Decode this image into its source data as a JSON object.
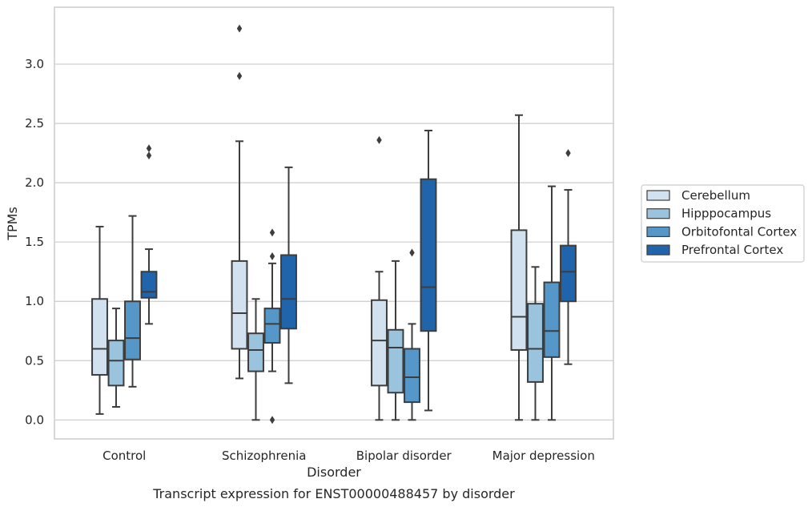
{
  "caption": "Transcript expression for ENST00000488457 by disorder",
  "chart_data": {
    "type": "box",
    "xlabel": "Disorder",
    "ylabel": "TPMs",
    "ylim": [
      -0.16,
      3.48
    ],
    "yticks": [
      "0.0",
      "0.5",
      "1.0",
      "1.5",
      "2.0",
      "2.5",
      "3.0"
    ],
    "ytick_values": [
      0.0,
      0.5,
      1.0,
      1.5,
      2.0,
      2.5,
      3.0
    ],
    "grid": "horizontal",
    "legend_position": "right",
    "categories": [
      "Control",
      "Schizophrenia",
      "Bipolar disorder",
      "Major depression"
    ],
    "series": [
      {
        "name": "Cerebellum",
        "color": "#d1e1f0",
        "boxes": [
          {
            "whisker_low": 0.05,
            "q1": 0.38,
            "median": 0.6,
            "q3": 1.02,
            "whisker_high": 1.63,
            "outliers": []
          },
          {
            "whisker_low": 0.35,
            "q1": 0.6,
            "median": 0.9,
            "q3": 1.34,
            "whisker_high": 2.35,
            "outliers": [
              2.9,
              3.3
            ]
          },
          {
            "whisker_low": 0.0,
            "q1": 0.29,
            "median": 0.67,
            "q3": 1.01,
            "whisker_high": 1.25,
            "outliers": [
              2.36
            ]
          },
          {
            "whisker_low": 0.0,
            "q1": 0.59,
            "median": 0.87,
            "q3": 1.6,
            "whisker_high": 2.57,
            "outliers": []
          }
        ]
      },
      {
        "name": "Hipppocampus",
        "color": "#9ac3dd",
        "boxes": [
          {
            "whisker_low": 0.11,
            "q1": 0.29,
            "median": 0.5,
            "q3": 0.67,
            "whisker_high": 0.94,
            "outliers": []
          },
          {
            "whisker_low": 0.0,
            "q1": 0.41,
            "median": 0.59,
            "q3": 0.73,
            "whisker_high": 1.02,
            "outliers": []
          },
          {
            "whisker_low": 0.0,
            "q1": 0.23,
            "median": 0.61,
            "q3": 0.76,
            "whisker_high": 1.34,
            "outliers": []
          },
          {
            "whisker_low": 0.0,
            "q1": 0.32,
            "median": 0.6,
            "q3": 0.98,
            "whisker_high": 1.29,
            "outliers": []
          }
        ]
      },
      {
        "name": "Orbitofontal Cortex",
        "color": "#5597c8",
        "boxes": [
          {
            "whisker_low": 0.28,
            "q1": 0.51,
            "median": 0.69,
            "q3": 1.0,
            "whisker_high": 1.72,
            "outliers": []
          },
          {
            "whisker_low": 0.41,
            "q1": 0.65,
            "median": 0.81,
            "q3": 0.94,
            "whisker_high": 1.32,
            "outliers": [
              0.0,
              1.38,
              1.58
            ]
          },
          {
            "whisker_low": 0.0,
            "q1": 0.15,
            "median": 0.36,
            "q3": 0.6,
            "whisker_high": 0.81,
            "outliers": [
              1.41
            ]
          },
          {
            "whisker_low": 0.0,
            "q1": 0.53,
            "median": 0.75,
            "q3": 1.16,
            "whisker_high": 1.97,
            "outliers": []
          }
        ]
      },
      {
        "name": "Prefrontal Cortex",
        "color": "#2065ab",
        "boxes": [
          {
            "whisker_low": 0.81,
            "q1": 1.03,
            "median": 1.08,
            "q3": 1.25,
            "whisker_high": 1.44,
            "outliers": [
              2.23,
              2.29
            ]
          },
          {
            "whisker_low": 0.31,
            "q1": 0.77,
            "median": 1.02,
            "q3": 1.39,
            "whisker_high": 2.13,
            "outliers": []
          },
          {
            "whisker_low": 0.08,
            "q1": 0.75,
            "median": 1.12,
            "q3": 2.03,
            "whisker_high": 2.44,
            "outliers": []
          },
          {
            "whisker_low": 0.47,
            "q1": 1.0,
            "median": 1.25,
            "q3": 1.47,
            "whisker_high": 1.94,
            "outliers": [
              2.25
            ]
          }
        ]
      }
    ]
  }
}
